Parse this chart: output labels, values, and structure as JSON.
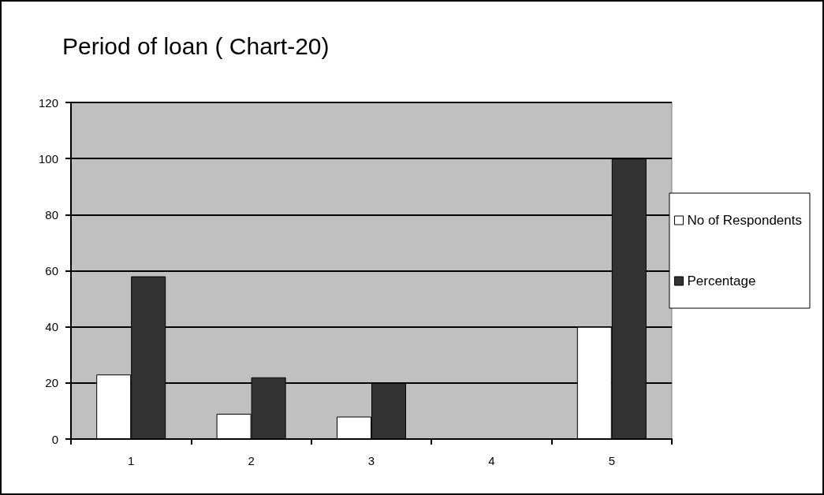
{
  "chart_data": {
    "type": "bar",
    "title": "Period of loan ( Chart-20)",
    "categories": [
      "1",
      "2",
      "3",
      "4",
      "5"
    ],
    "series": [
      {
        "name": "No of Respondents",
        "color": "#ffffff",
        "values": [
          23,
          9,
          8,
          0,
          40
        ]
      },
      {
        "name": "Percentage",
        "color": "#333333",
        "values": [
          58,
          22,
          20,
          0,
          100
        ]
      }
    ],
    "ylim": [
      0,
      120
    ],
    "yticks": [
      0,
      20,
      40,
      60,
      80,
      100,
      120
    ],
    "grid": "y",
    "legend": "right"
  }
}
